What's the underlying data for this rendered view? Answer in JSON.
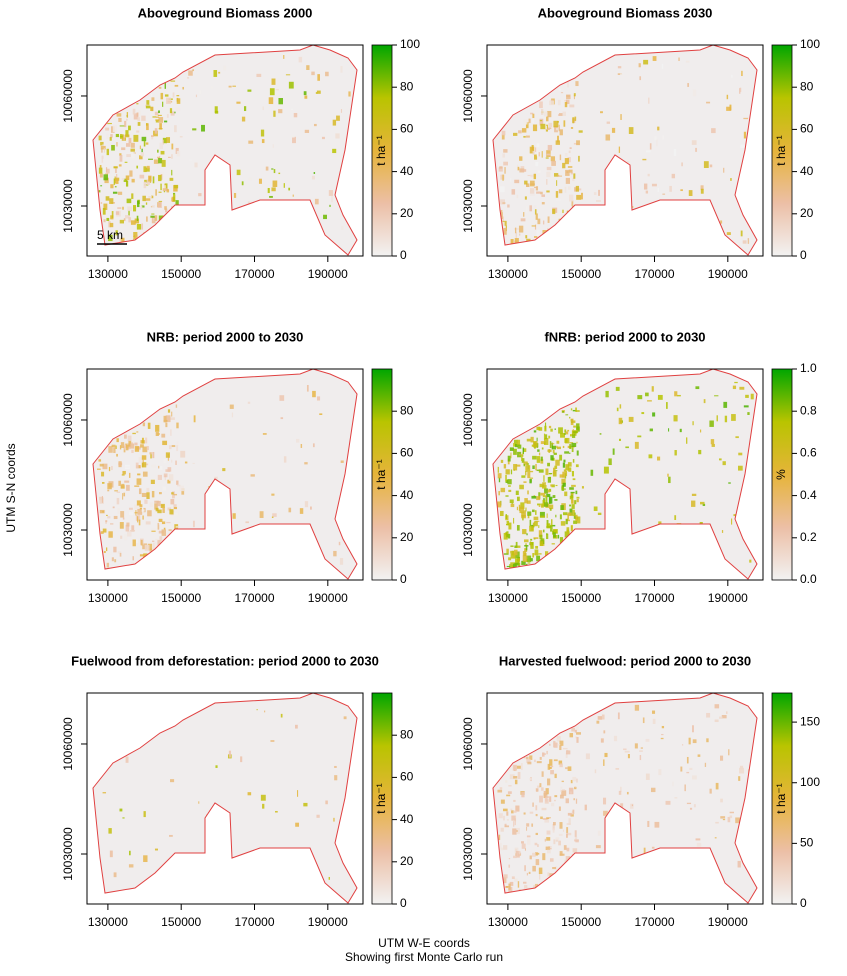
{
  "colormap": [
    "#f2f2f2",
    "#ecbfa6",
    "#e6b43a",
    "#b9c400",
    "#00a600"
  ],
  "y_axis_label": "UTM S-N coords",
  "x_axis_label": "UTM W-E coords",
  "footnote": "Showing first Monte Carlo run",
  "panels": [
    {
      "title": "Aboveground Biomass 2000",
      "unit": "t ha⁻¹",
      "scale_bar": "5 km",
      "xlim": [
        124300,
        199600
      ],
      "ylim": [
        10016364,
        10073900
      ],
      "xticks": [
        130000,
        150000,
        170000,
        190000
      ],
      "yticks": [
        10030000,
        10060000
      ],
      "colorbar_lim": [
        0,
        100
      ],
      "colorbar_ticks": [
        0,
        20,
        40,
        60,
        80,
        100
      ]
    },
    {
      "title": "Aboveground Biomass 2030",
      "unit": "t ha⁻¹",
      "xlim": [
        124300,
        199600
      ],
      "ylim": [
        10016364,
        10073900
      ],
      "xticks": [
        130000,
        150000,
        170000,
        190000
      ],
      "yticks": [
        10030000,
        10060000
      ],
      "colorbar_lim": [
        0,
        100
      ],
      "colorbar_ticks": [
        0,
        20,
        40,
        60,
        80,
        100
      ]
    },
    {
      "title": "NRB: period 2000 to 2030",
      "unit": "t ha⁻¹",
      "xlim": [
        124300,
        199600
      ],
      "ylim": [
        10016364,
        10073900
      ],
      "xticks": [
        130000,
        150000,
        170000,
        190000
      ],
      "yticks": [
        10030000,
        10060000
      ],
      "colorbar_lim": [
        0,
        100
      ],
      "colorbar_ticks": [
        0,
        20,
        40,
        60,
        80
      ]
    },
    {
      "title": "fNRB: period 2000 to 2030",
      "unit": "%",
      "xlim": [
        124300,
        199600
      ],
      "ylim": [
        10016364,
        10073900
      ],
      "xticks": [
        130000,
        150000,
        170000,
        190000
      ],
      "yticks": [
        10030000,
        10060000
      ],
      "colorbar_lim": [
        0,
        1
      ],
      "colorbar_ticks": [
        {
          "value": 0,
          "label": "0.0"
        },
        0.2,
        0.4,
        0.6,
        0.8,
        {
          "value": 1,
          "label": "1.0"
        }
      ]
    },
    {
      "title": "Fuelwood from deforestation: period 2000 to 2030",
      "unit": "t ha⁻¹",
      "xlim": [
        124300,
        199600
      ],
      "ylim": [
        10016364,
        10073900
      ],
      "xticks": [
        130000,
        150000,
        170000,
        190000
      ],
      "yticks": [
        10030000,
        10060000
      ],
      "colorbar_lim": [
        0,
        100
      ],
      "colorbar_ticks": [
        0,
        20,
        40,
        60,
        80
      ]
    },
    {
      "title": "Harvested fuelwood: period 2000 to 2030",
      "unit": "t ha⁻¹",
      "xlim": [
        124300,
        199600
      ],
      "ylim": [
        10016364,
        10073900
      ],
      "xticks": [
        130000,
        150000,
        170000,
        190000
      ],
      "yticks": [
        10030000,
        10060000
      ],
      "colorbar_lim": [
        0,
        174
      ],
      "colorbar_ticks": [
        0,
        50,
        100,
        150
      ]
    }
  ]
}
